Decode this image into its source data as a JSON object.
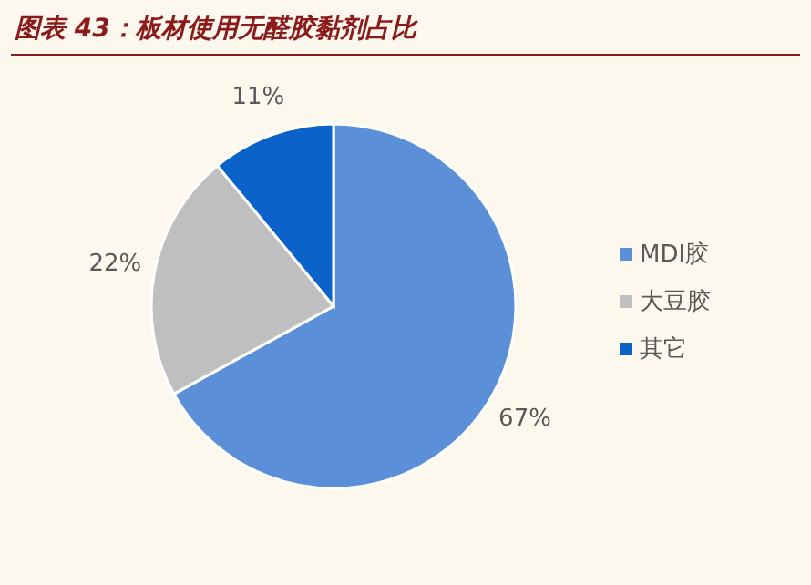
{
  "chart_data": {
    "type": "pie",
    "title": "图表 43：板材使用无醛胶黏剂占比",
    "categories": [
      "MDI胶",
      "大豆胶",
      "其它"
    ],
    "values": [
      67,
      22,
      11
    ],
    "colors": [
      "#5b8fd8",
      "#bfbfbf",
      "#0b63c9"
    ],
    "value_labels": [
      "67%",
      "22%",
      "11%"
    ],
    "legend": "right"
  }
}
